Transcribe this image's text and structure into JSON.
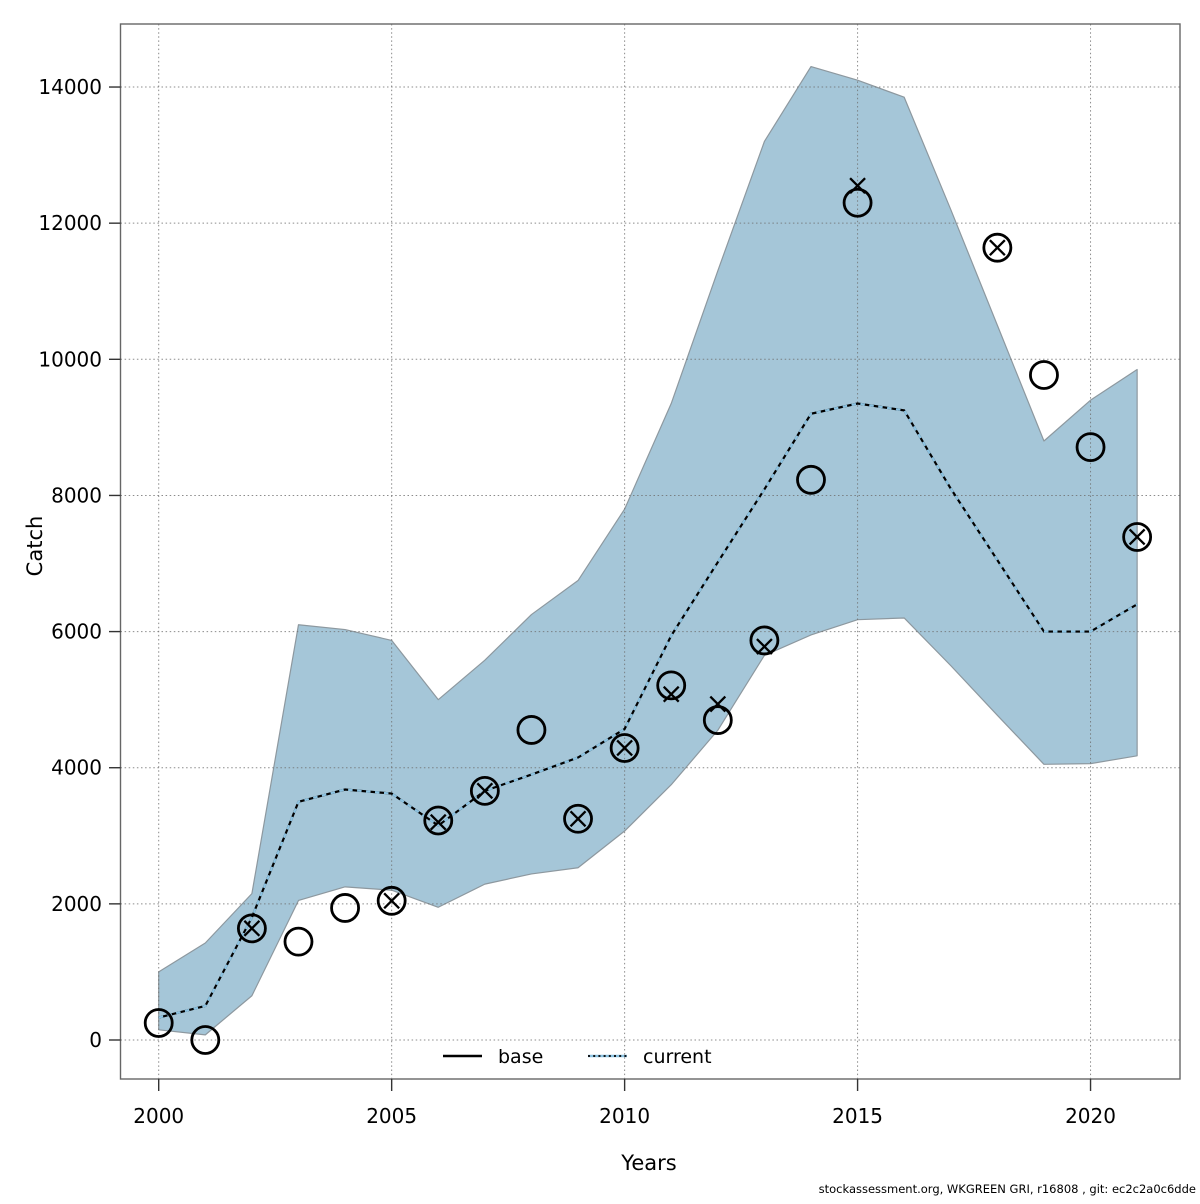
{
  "figure": {
    "xlabel": "Years",
    "ylabel": "Catch",
    "footer": "stockassessment.org, WKGREEN GRI, r16808 , git: ec2c2a0c6dde"
  },
  "legend": {
    "items": [
      {
        "label": "base",
        "style": "solid",
        "color": "#000000"
      },
      {
        "label": "current",
        "style": "dashed",
        "color": "#8cc3e2"
      }
    ],
    "position": "bottom-center-inside"
  },
  "colors": {
    "band_fill": "#a5c6d8",
    "band_edge": "#8d989f",
    "base_line": "#000000",
    "current_line": "#8cc3e2",
    "marker": "#000000",
    "grid": "#6f6f6f",
    "frame": "#666666"
  },
  "chart_data": {
    "type": "line",
    "title": "",
    "xlabel": "Years",
    "ylabel": "Catch",
    "grid": true,
    "x_ticks": [
      2000,
      2005,
      2010,
      2015,
      2020
    ],
    "y_ticks": [
      0,
      2000,
      4000,
      6000,
      8000,
      10000,
      12000,
      14000
    ],
    "xlim": [
      1999.18,
      2021.92
    ],
    "ylim": [
      -573,
      14926
    ],
    "years": [
      2000,
      2001,
      2002,
      2003,
      2004,
      2005,
      2006,
      2007,
      2008,
      2009,
      2010,
      2011,
      2012,
      2013,
      2014,
      2015,
      2016,
      2017,
      2018,
      2019,
      2020,
      2021
    ],
    "band": {
      "name": "current-confidence-interval",
      "upper": [
        1000,
        1425,
        2150,
        6100,
        6030,
        5870,
        5000,
        5580,
        6250,
        6750,
        7800,
        9350,
        11300,
        13200,
        14300,
        14100,
        13850,
        12200,
        10500,
        8800,
        9400,
        9850
      ],
      "lower": [
        150,
        75,
        650,
        2050,
        2250,
        2200,
        1950,
        2290,
        2440,
        2530,
        3070,
        3750,
        4550,
        5650,
        5950,
        6175,
        6200,
        5500,
        4770,
        4050,
        4060,
        4175
      ]
    },
    "series": [
      {
        "name": "base",
        "values": [
          330,
          500,
          1800,
          3500,
          3680,
          3620,
          3150,
          3660,
          3900,
          4150,
          4570,
          5940,
          7020,
          8090,
          9200,
          9350,
          9250,
          8100,
          7050,
          6000,
          6000,
          6400
        ]
      },
      {
        "name": "current",
        "values": [
          330,
          500,
          1800,
          3500,
          3680,
          3620,
          3150,
          3660,
          3900,
          4150,
          4570,
          5940,
          7020,
          8090,
          9200,
          9350,
          9250,
          8100,
          7050,
          6000,
          6000,
          6400
        ]
      }
    ],
    "observations": {
      "circles": [
        {
          "year": 2000,
          "value": 250
        },
        {
          "year": 2001,
          "value": 0
        },
        {
          "year": 2002,
          "value": 1640
        },
        {
          "year": 2003,
          "value": 1445
        },
        {
          "year": 2004,
          "value": 1940
        },
        {
          "year": 2005,
          "value": 2045
        },
        {
          "year": 2006,
          "value": 3225
        },
        {
          "year": 2007,
          "value": 3660
        },
        {
          "year": 2008,
          "value": 4555
        },
        {
          "year": 2009,
          "value": 3250
        },
        {
          "year": 2010,
          "value": 4290
        },
        {
          "year": 2011,
          "value": 5210
        },
        {
          "year": 2012,
          "value": 4700
        },
        {
          "year": 2013,
          "value": 5870
        },
        {
          "year": 2014,
          "value": 8230
        },
        {
          "year": 2015,
          "value": 12300
        },
        {
          "year": 2018,
          "value": 11640
        },
        {
          "year": 2019,
          "value": 9770
        },
        {
          "year": 2020,
          "value": 8710
        },
        {
          "year": 2021,
          "value": 7390
        }
      ],
      "crosses": [
        {
          "year": 2002,
          "value": 1640
        },
        {
          "year": 2005,
          "value": 2045
        },
        {
          "year": 2006,
          "value": 3200
        },
        {
          "year": 2007,
          "value": 3660
        },
        {
          "year": 2009,
          "value": 3250
        },
        {
          "year": 2010,
          "value": 4290
        },
        {
          "year": 2011,
          "value": 5080
        },
        {
          "year": 2012,
          "value": 4935
        },
        {
          "year": 2013,
          "value": 5780
        },
        {
          "year": 2015,
          "value": 12550
        },
        {
          "year": 2018,
          "value": 11640
        },
        {
          "year": 2021,
          "value": 7390
        }
      ]
    }
  }
}
